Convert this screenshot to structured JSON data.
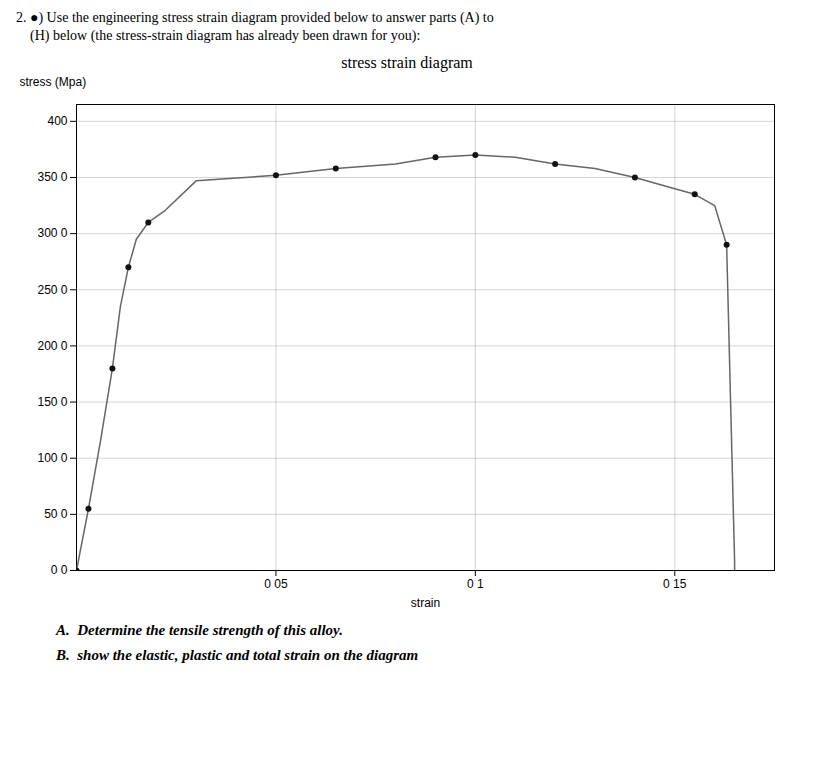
{
  "chart_data": {
    "type": "line",
    "title": "stress strain diagram",
    "xlabel": "strain",
    "ylabel": "stress (Mpa)",
    "xlim": [
      0,
      0.175
    ],
    "ylim": [
      0,
      415
    ],
    "xticks": [
      {
        "value": 0.05,
        "label": "0 05"
      },
      {
        "value": 0.1,
        "label": "0 1"
      },
      {
        "value": 0.15,
        "label": "0 15"
      }
    ],
    "yticks": [
      {
        "value": 0.0,
        "label": "0 0"
      },
      {
        "value": 50.0,
        "label": "50 0"
      },
      {
        "value": 100.0,
        "label": "100 0"
      },
      {
        "value": 150.0,
        "label": "150 0"
      },
      {
        "value": 200.0,
        "label": "200 0"
      },
      {
        "value": 250.0,
        "label": "250 0"
      },
      {
        "value": 300.0,
        "label": "300 0"
      },
      {
        "value": 350.0,
        "label": "350 0"
      },
      400
    ],
    "grid": true,
    "series": [
      {
        "type": "line",
        "color": "#666666",
        "x": [
          0.0,
          0.003,
          0.006,
          0.009,
          0.011,
          0.013,
          0.015,
          0.018,
          0.022,
          0.03,
          0.05,
          0.065,
          0.08,
          0.09,
          0.1,
          0.11,
          0.12,
          0.13,
          0.14,
          0.15,
          0.155,
          0.16,
          0.163,
          0.165,
          0.165
        ],
        "values": [
          0.0,
          55.0,
          115.0,
          180.0,
          235.0,
          270.0,
          295.0,
          310.0,
          320.0,
          347.0,
          352.0,
          358.0,
          362.0,
          368.0,
          370.0,
          368.0,
          362.0,
          358.0,
          350.0,
          340.0,
          335.0,
          325.0,
          290.0,
          8.0,
          0.0
        ]
      },
      {
        "type": "scatter",
        "color": "#111111",
        "x": [
          0.0,
          0.003,
          0.009,
          0.013,
          0.018,
          0.05,
          0.065,
          0.09,
          0.1,
          0.12,
          0.14,
          0.155,
          0.163
        ],
        "values": [
          0.0,
          55.0,
          180.0,
          270.0,
          310.0,
          352.0,
          358.0,
          368.0,
          370.0,
          362.0,
          350.0,
          335.0,
          290.0
        ]
      }
    ],
    "annotations": [
      "2. ●) Use the engineering stress strain diagram provided below to answer parts (A) to",
      "    (H) below (the stress-strain diagram has already been drawn for you):",
      "A.  Determine the tensile strength of this alloy.",
      "B.  show the elastic, plastic and total strain on the diagram"
    ]
  }
}
